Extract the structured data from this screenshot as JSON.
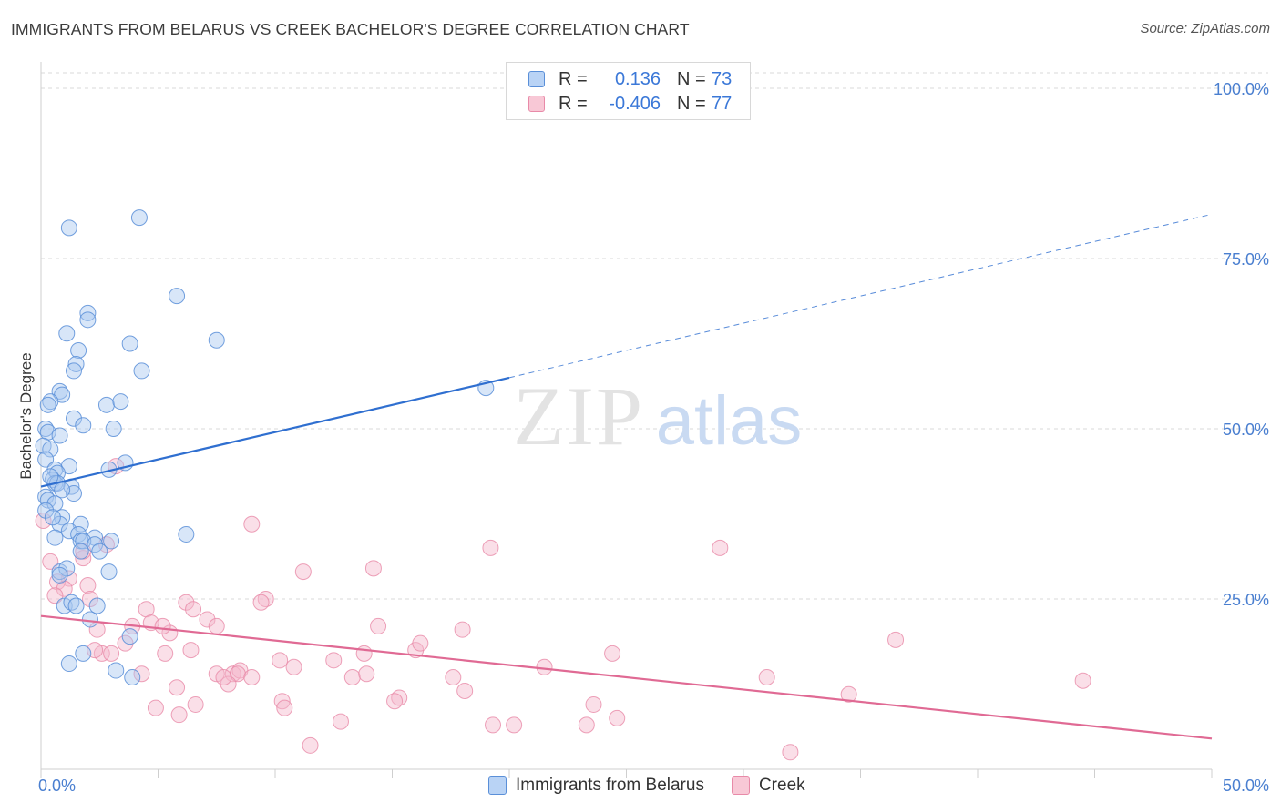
{
  "title": "IMMIGRANTS FROM BELARUS VS CREEK BACHELOR'S DEGREE CORRELATION CHART",
  "source": "Source: ZipAtlas.com",
  "watermark": {
    "zip": "ZIP",
    "atlas": "atlas"
  },
  "legend": {
    "rows": [
      {
        "r_label": "R =",
        "r_value": "0.136",
        "n_label": "N =",
        "n_value": "73"
      },
      {
        "r_label": "R =",
        "r_value": "-0.406",
        "n_label": "N =",
        "n_value": "77"
      }
    ]
  },
  "bottom_legend": [
    "Immigrants from Belarus",
    "Creek"
  ],
  "colors": {
    "blue_fill": "#a9c8f0",
    "blue_stroke": "#5a8fd8",
    "blue_line": "#2f6fd0",
    "pink_fill": "#f5b8cb",
    "pink_stroke": "#e88aa8",
    "pink_line": "#e06a94",
    "tick_label": "#4a7fd0",
    "grid": "#d9d9d9"
  },
  "chart_data": {
    "type": "scatter",
    "xlabel": "",
    "ylabel": "Bachelor's Degree",
    "xlim": [
      0,
      50
    ],
    "ylim": [
      0,
      100
    ],
    "x_tick_labels": [
      "0.0%",
      "50.0%"
    ],
    "y_tick_labels": [
      "25.0%",
      "50.0%",
      "75.0%",
      "100.0%"
    ],
    "y_ticks": [
      25,
      50,
      75,
      100
    ],
    "legend_position": "top-center",
    "series": [
      {
        "name": "Immigrants from Belarus",
        "color": "#5a8fd8",
        "trend": {
          "x": [
            0,
            20
          ],
          "y": [
            41.5,
            57.5
          ],
          "dashed_to": [
            50,
            81.5
          ]
        },
        "points": [
          [
            4.2,
            81
          ],
          [
            1.2,
            79.5
          ],
          [
            5.8,
            69.5
          ],
          [
            2.0,
            67
          ],
          [
            2.0,
            66
          ],
          [
            7.5,
            63
          ],
          [
            3.8,
            62.5
          ],
          [
            1.1,
            64
          ],
          [
            1.6,
            61.5
          ],
          [
            1.5,
            59.5
          ],
          [
            1.4,
            58.5
          ],
          [
            4.3,
            58.5
          ],
          [
            0.8,
            55.5
          ],
          [
            0.9,
            55
          ],
          [
            0.4,
            54
          ],
          [
            0.3,
            53.5
          ],
          [
            2.8,
            53.5
          ],
          [
            3.4,
            54
          ],
          [
            1.4,
            51.5
          ],
          [
            1.8,
            50.5
          ],
          [
            3.1,
            50
          ],
          [
            0.2,
            50
          ],
          [
            0.3,
            49.5
          ],
          [
            0.8,
            49
          ],
          [
            0.1,
            47.5
          ],
          [
            0.4,
            47
          ],
          [
            3.6,
            45
          ],
          [
            1.2,
            44.5
          ],
          [
            0.2,
            45.5
          ],
          [
            0.6,
            44
          ],
          [
            0.7,
            43.5
          ],
          [
            2.9,
            44
          ],
          [
            0.5,
            42.5
          ],
          [
            0.6,
            42
          ],
          [
            0.7,
            42
          ],
          [
            1.3,
            41.5
          ],
          [
            1.4,
            40.5
          ],
          [
            0.2,
            40
          ],
          [
            0.3,
            39.5
          ],
          [
            0.6,
            39
          ],
          [
            0.9,
            37
          ],
          [
            0.8,
            36
          ],
          [
            1.7,
            36
          ],
          [
            1.2,
            35
          ],
          [
            1.6,
            34.5
          ],
          [
            0.6,
            34
          ],
          [
            2.3,
            34
          ],
          [
            1.7,
            33.5
          ],
          [
            1.8,
            33.5
          ],
          [
            2.3,
            33
          ],
          [
            2.5,
            32
          ],
          [
            1.7,
            32
          ],
          [
            6.2,
            34.5
          ],
          [
            0.8,
            29
          ],
          [
            1.1,
            29.5
          ],
          [
            2.9,
            29
          ],
          [
            0.8,
            28.5
          ],
          [
            1.0,
            24
          ],
          [
            1.3,
            24.5
          ],
          [
            1.5,
            24
          ],
          [
            2.4,
            24
          ],
          [
            3.8,
            19.5
          ],
          [
            1.8,
            17
          ],
          [
            3.2,
            14.5
          ],
          [
            1.2,
            15.5
          ],
          [
            3.9,
            13.5
          ],
          [
            19.0,
            56
          ],
          [
            2.1,
            22
          ],
          [
            0.4,
            43
          ],
          [
            3.0,
            33.5
          ],
          [
            0.2,
            38
          ],
          [
            0.9,
            41
          ],
          [
            0.5,
            37
          ]
        ]
      },
      {
        "name": "Creek",
        "color": "#e88aa8",
        "trend": {
          "x": [
            0,
            50
          ],
          "y": [
            22.5,
            4.5
          ]
        },
        "points": [
          [
            0.1,
            36.5
          ],
          [
            0.4,
            30.5
          ],
          [
            3.2,
            44.5
          ],
          [
            9.0,
            36
          ],
          [
            1.8,
            31
          ],
          [
            1.8,
            32
          ],
          [
            2.8,
            33
          ],
          [
            19.2,
            32.5
          ],
          [
            29.0,
            32.5
          ],
          [
            14.2,
            29.5
          ],
          [
            11.2,
            29
          ],
          [
            1.2,
            28
          ],
          [
            0.7,
            27.5
          ],
          [
            2.0,
            27
          ],
          [
            1.0,
            26.5
          ],
          [
            2.1,
            25
          ],
          [
            6.2,
            24.5
          ],
          [
            9.6,
            25
          ],
          [
            9.4,
            24.5
          ],
          [
            6.5,
            23.5
          ],
          [
            4.5,
            23.5
          ],
          [
            0.6,
            25.5
          ],
          [
            7.1,
            22
          ],
          [
            7.5,
            21
          ],
          [
            3.9,
            21
          ],
          [
            5.5,
            20
          ],
          [
            14.4,
            21
          ],
          [
            18.0,
            20.5
          ],
          [
            4.7,
            21.5
          ],
          [
            2.4,
            20.5
          ],
          [
            5.2,
            21
          ],
          [
            36.5,
            19
          ],
          [
            2.6,
            17
          ],
          [
            3.0,
            17
          ],
          [
            3.6,
            18.5
          ],
          [
            6.4,
            17.5
          ],
          [
            5.3,
            17
          ],
          [
            13.8,
            17
          ],
          [
            16.0,
            17.5
          ],
          [
            16.2,
            18.5
          ],
          [
            24.4,
            17
          ],
          [
            10.2,
            16
          ],
          [
            12.5,
            16
          ],
          [
            21.5,
            15
          ],
          [
            10.8,
            15
          ],
          [
            4.3,
            14
          ],
          [
            7.5,
            14
          ],
          [
            8.2,
            14
          ],
          [
            8.5,
            14.5
          ],
          [
            8.4,
            14
          ],
          [
            9.0,
            13.5
          ],
          [
            13.3,
            13.5
          ],
          [
            13.9,
            14
          ],
          [
            17.6,
            13.5
          ],
          [
            8.0,
            12.5
          ],
          [
            7.8,
            13.5
          ],
          [
            31.0,
            13.5
          ],
          [
            44.5,
            13
          ],
          [
            18.1,
            11.5
          ],
          [
            5.8,
            12
          ],
          [
            34.5,
            11
          ],
          [
            15.3,
            10.5
          ],
          [
            15.1,
            10
          ],
          [
            10.3,
            10
          ],
          [
            4.9,
            9
          ],
          [
            6.6,
            9.5
          ],
          [
            10.4,
            9
          ],
          [
            23.6,
            9.5
          ],
          [
            5.9,
            8
          ],
          [
            12.8,
            7
          ],
          [
            24.6,
            7.5
          ],
          [
            19.3,
            6.5
          ],
          [
            20.2,
            6.5
          ],
          [
            23.3,
            6.5
          ],
          [
            11.5,
            3.5
          ],
          [
            32.0,
            2.5
          ],
          [
            2.3,
            17.5
          ]
        ]
      }
    ]
  }
}
